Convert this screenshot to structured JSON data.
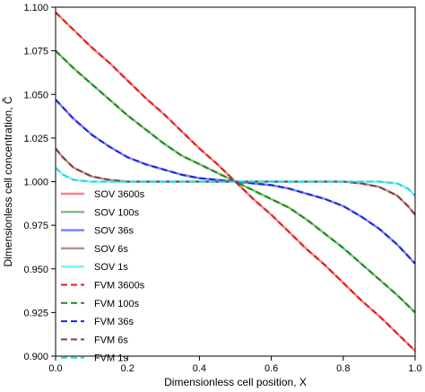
{
  "chart_data": {
    "type": "line",
    "xlabel": "Dimensionless cell position, X",
    "ylabel": "Dimensionless cell concentration, C̃",
    "xlim": [
      0.0,
      1.0
    ],
    "ylim": [
      0.9,
      1.1
    ],
    "xticks": [
      "0.0",
      "0.2",
      "0.4",
      "0.6",
      "0.8",
      "1.0"
    ],
    "yticks": [
      "0.900",
      "0.925",
      "0.950",
      "0.975",
      "1.000",
      "1.025",
      "1.050",
      "1.075",
      "1.100"
    ],
    "grid": false,
    "legend_position": "lower-left",
    "series": [
      {
        "name": "SOV 3600s",
        "style": "solid",
        "color": "#ff8080",
        "x": [
          0.0,
          0.05,
          0.1,
          0.15,
          0.2,
          0.25,
          0.3,
          0.35,
          0.4,
          0.45,
          0.5,
          0.55,
          0.6,
          0.65,
          0.7,
          0.75,
          0.8,
          0.85,
          0.9,
          0.95,
          1.0
        ],
        "y": [
          1.097,
          1.087,
          1.077,
          1.068,
          1.058,
          1.048,
          1.039,
          1.029,
          1.019,
          1.01,
          1.0,
          0.99,
          0.981,
          0.971,
          0.961,
          0.952,
          0.942,
          0.932,
          0.923,
          0.913,
          0.903
        ]
      },
      {
        "name": "SOV 100s",
        "style": "solid",
        "color": "#80c080",
        "x": [
          0.0,
          0.05,
          0.1,
          0.15,
          0.2,
          0.25,
          0.3,
          0.35,
          0.4,
          0.45,
          0.5,
          0.55,
          0.6,
          0.65,
          0.7,
          0.75,
          0.8,
          0.85,
          0.9,
          0.95,
          1.0
        ],
        "y": [
          1.075,
          1.065,
          1.056,
          1.047,
          1.038,
          1.03,
          1.022,
          1.015,
          1.01,
          1.005,
          1.0,
          0.995,
          0.99,
          0.985,
          0.978,
          0.97,
          0.962,
          0.953,
          0.944,
          0.935,
          0.925
        ]
      },
      {
        "name": "SOV 36s",
        "style": "solid",
        "color": "#8080ff",
        "x": [
          0.0,
          0.05,
          0.1,
          0.15,
          0.2,
          0.25,
          0.3,
          0.35,
          0.4,
          0.45,
          0.5,
          0.55,
          0.6,
          0.65,
          0.7,
          0.75,
          0.8,
          0.85,
          0.9,
          0.95,
          1.0
        ],
        "y": [
          1.047,
          1.036,
          1.027,
          1.02,
          1.014,
          1.01,
          1.007,
          1.004,
          1.002,
          1.001,
          1.0,
          0.999,
          0.998,
          0.996,
          0.993,
          0.99,
          0.986,
          0.98,
          0.973,
          0.964,
          0.953
        ]
      },
      {
        "name": "SOV 6s",
        "style": "solid",
        "color": "#c09090",
        "x": [
          0.0,
          0.02,
          0.05,
          0.1,
          0.15,
          0.2,
          0.3,
          0.4,
          0.5,
          0.6,
          0.7,
          0.8,
          0.85,
          0.9,
          0.95,
          0.98,
          1.0
        ],
        "y": [
          1.019,
          1.014,
          1.008,
          1.003,
          1.001,
          1.0,
          1.0,
          1.0,
          1.0,
          1.0,
          1.0,
          1.0,
          0.999,
          0.997,
          0.992,
          0.986,
          0.981
        ]
      },
      {
        "name": "SOV 1s",
        "style": "solid",
        "color": "#80f0f0",
        "x": [
          0.0,
          0.02,
          0.05,
          0.1,
          0.2,
          0.3,
          0.4,
          0.5,
          0.6,
          0.7,
          0.8,
          0.9,
          0.95,
          0.98,
          1.0
        ],
        "y": [
          1.008,
          1.004,
          1.001,
          1.0,
          1.0,
          1.0,
          1.0,
          1.0,
          1.0,
          1.0,
          1.0,
          1.0,
          0.999,
          0.996,
          0.992
        ]
      },
      {
        "name": "FVM 3600s",
        "style": "dashed",
        "color": "#d62020",
        "x": [
          0.0,
          0.05,
          0.1,
          0.15,
          0.2,
          0.25,
          0.3,
          0.35,
          0.4,
          0.45,
          0.5,
          0.55,
          0.6,
          0.65,
          0.7,
          0.75,
          0.8,
          0.85,
          0.9,
          0.95,
          1.0
        ],
        "y": [
          1.097,
          1.087,
          1.077,
          1.068,
          1.058,
          1.048,
          1.039,
          1.029,
          1.019,
          1.01,
          1.0,
          0.99,
          0.981,
          0.971,
          0.961,
          0.952,
          0.942,
          0.932,
          0.923,
          0.913,
          0.903
        ]
      },
      {
        "name": "FVM 100s",
        "style": "dashed",
        "color": "#1a8a1a",
        "x": [
          0.0,
          0.05,
          0.1,
          0.15,
          0.2,
          0.25,
          0.3,
          0.35,
          0.4,
          0.45,
          0.5,
          0.55,
          0.6,
          0.65,
          0.7,
          0.75,
          0.8,
          0.85,
          0.9,
          0.95,
          1.0
        ],
        "y": [
          1.075,
          1.065,
          1.056,
          1.047,
          1.038,
          1.03,
          1.022,
          1.015,
          1.01,
          1.005,
          1.0,
          0.995,
          0.99,
          0.985,
          0.978,
          0.97,
          0.962,
          0.953,
          0.944,
          0.935,
          0.925
        ]
      },
      {
        "name": "FVM 36s",
        "style": "dashed",
        "color": "#1a2ad0",
        "x": [
          0.0,
          0.05,
          0.1,
          0.15,
          0.2,
          0.25,
          0.3,
          0.35,
          0.4,
          0.45,
          0.5,
          0.55,
          0.6,
          0.65,
          0.7,
          0.75,
          0.8,
          0.85,
          0.9,
          0.95,
          1.0
        ],
        "y": [
          1.047,
          1.036,
          1.027,
          1.02,
          1.014,
          1.01,
          1.007,
          1.004,
          1.002,
          1.001,
          1.0,
          0.999,
          0.998,
          0.996,
          0.993,
          0.99,
          0.986,
          0.98,
          0.973,
          0.964,
          0.953
        ]
      },
      {
        "name": "FVM 6s",
        "style": "dashed",
        "color": "#8a3a3a",
        "x": [
          0.0,
          0.02,
          0.05,
          0.1,
          0.15,
          0.2,
          0.3,
          0.4,
          0.5,
          0.6,
          0.7,
          0.8,
          0.85,
          0.9,
          0.95,
          0.98,
          1.0
        ],
        "y": [
          1.019,
          1.014,
          1.008,
          1.003,
          1.001,
          1.0,
          1.0,
          1.0,
          1.0,
          1.0,
          1.0,
          1.0,
          0.999,
          0.997,
          0.992,
          0.986,
          0.981
        ]
      },
      {
        "name": "FVM 1s",
        "style": "dashed",
        "color": "#20d8e8",
        "x": [
          0.0,
          0.02,
          0.05,
          0.1,
          0.2,
          0.3,
          0.4,
          0.5,
          0.6,
          0.7,
          0.8,
          0.9,
          0.95,
          0.98,
          1.0
        ],
        "y": [
          1.008,
          1.004,
          1.001,
          1.0,
          1.0,
          1.0,
          1.0,
          1.0,
          1.0,
          1.0,
          1.0,
          1.0,
          0.999,
          0.996,
          0.992
        ]
      }
    ]
  }
}
